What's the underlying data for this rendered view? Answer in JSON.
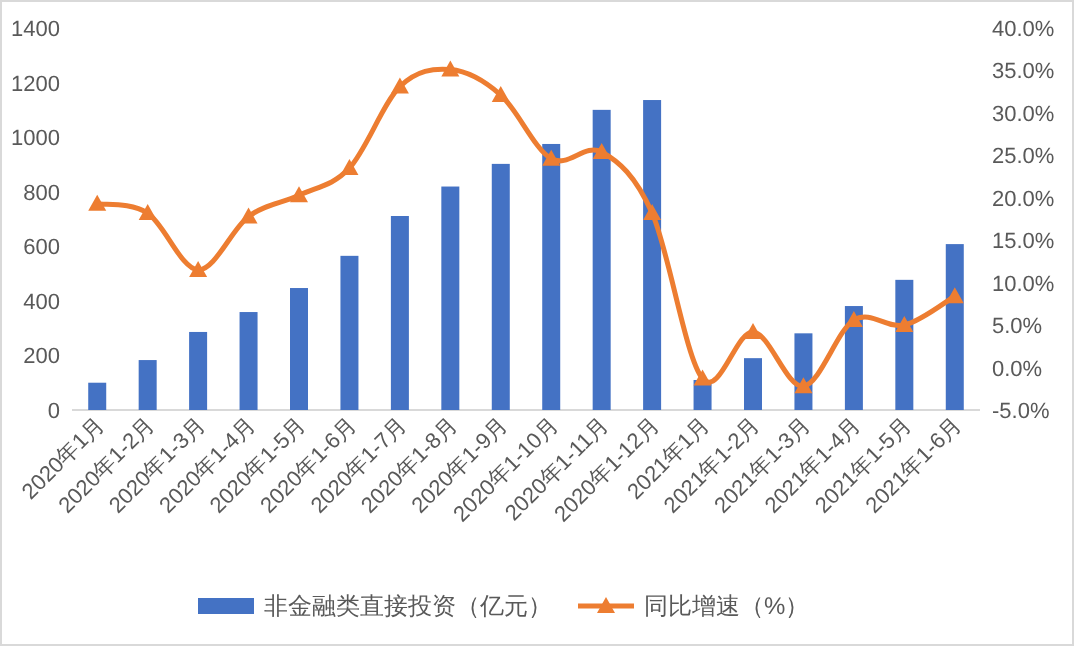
{
  "chart_data": {
    "type": "bar",
    "categories": [
      "2020年1月",
      "2020年1-2月",
      "2020年1-3月",
      "2020年1-4月",
      "2020年1-5月",
      "2020年1-6月",
      "2020年1-7月",
      "2020年1-8月",
      "2020年1-9月",
      "2020年1-10月",
      "2020年1-11月",
      "2020年1-12月",
      "2021年1月",
      "2021年1-2月",
      "2021年1-3月",
      "2021年1-4月",
      "2021年1-5月",
      "2021年1-6月"
    ],
    "series": [
      {
        "name": "非金融类直接投资（亿元）",
        "color": "#4472c4",
        "values": [
          100,
          183,
          286,
          359,
          447,
          565,
          711,
          819,
          902,
          975,
          1100,
          1136,
          110,
          190,
          281,
          381,
          477,
          608
        ]
      },
      {
        "name": "同比增速（%）",
        "type": "line",
        "axis": "y2",
        "color": "#ed7d31",
        "values": [
          19.3,
          18.2,
          11.5,
          17.8,
          20.3,
          23.5,
          33.1,
          35.1,
          32.1,
          24.6,
          25.4,
          18.2,
          -1.3,
          4.2,
          -2.2,
          5.6,
          5.0,
          8.4
        ]
      }
    ],
    "ylim": [
      0,
      1400
    ],
    "yticks": [
      0,
      200,
      400,
      600,
      800,
      1000,
      1200,
      1400
    ],
    "y2lim": [
      -5,
      40
    ],
    "y2ticks": [
      {
        "value": -5,
        "label": "-5.0%"
      },
      {
        "value": 0,
        "label": "0.0%"
      },
      {
        "value": 5,
        "label": "5.0%"
      },
      {
        "value": 10,
        "label": "10.0%"
      },
      {
        "value": 15,
        "label": "15.0%"
      },
      {
        "value": 20,
        "label": "20.0%"
      },
      {
        "value": 25,
        "label": "25.0%"
      },
      {
        "value": 30,
        "label": "30.0%"
      },
      {
        "value": 35,
        "label": "35.0%"
      },
      {
        "value": 40,
        "label": "40.0%"
      }
    ],
    "marker": "triangle",
    "legend": "bottom",
    "grid": false
  }
}
